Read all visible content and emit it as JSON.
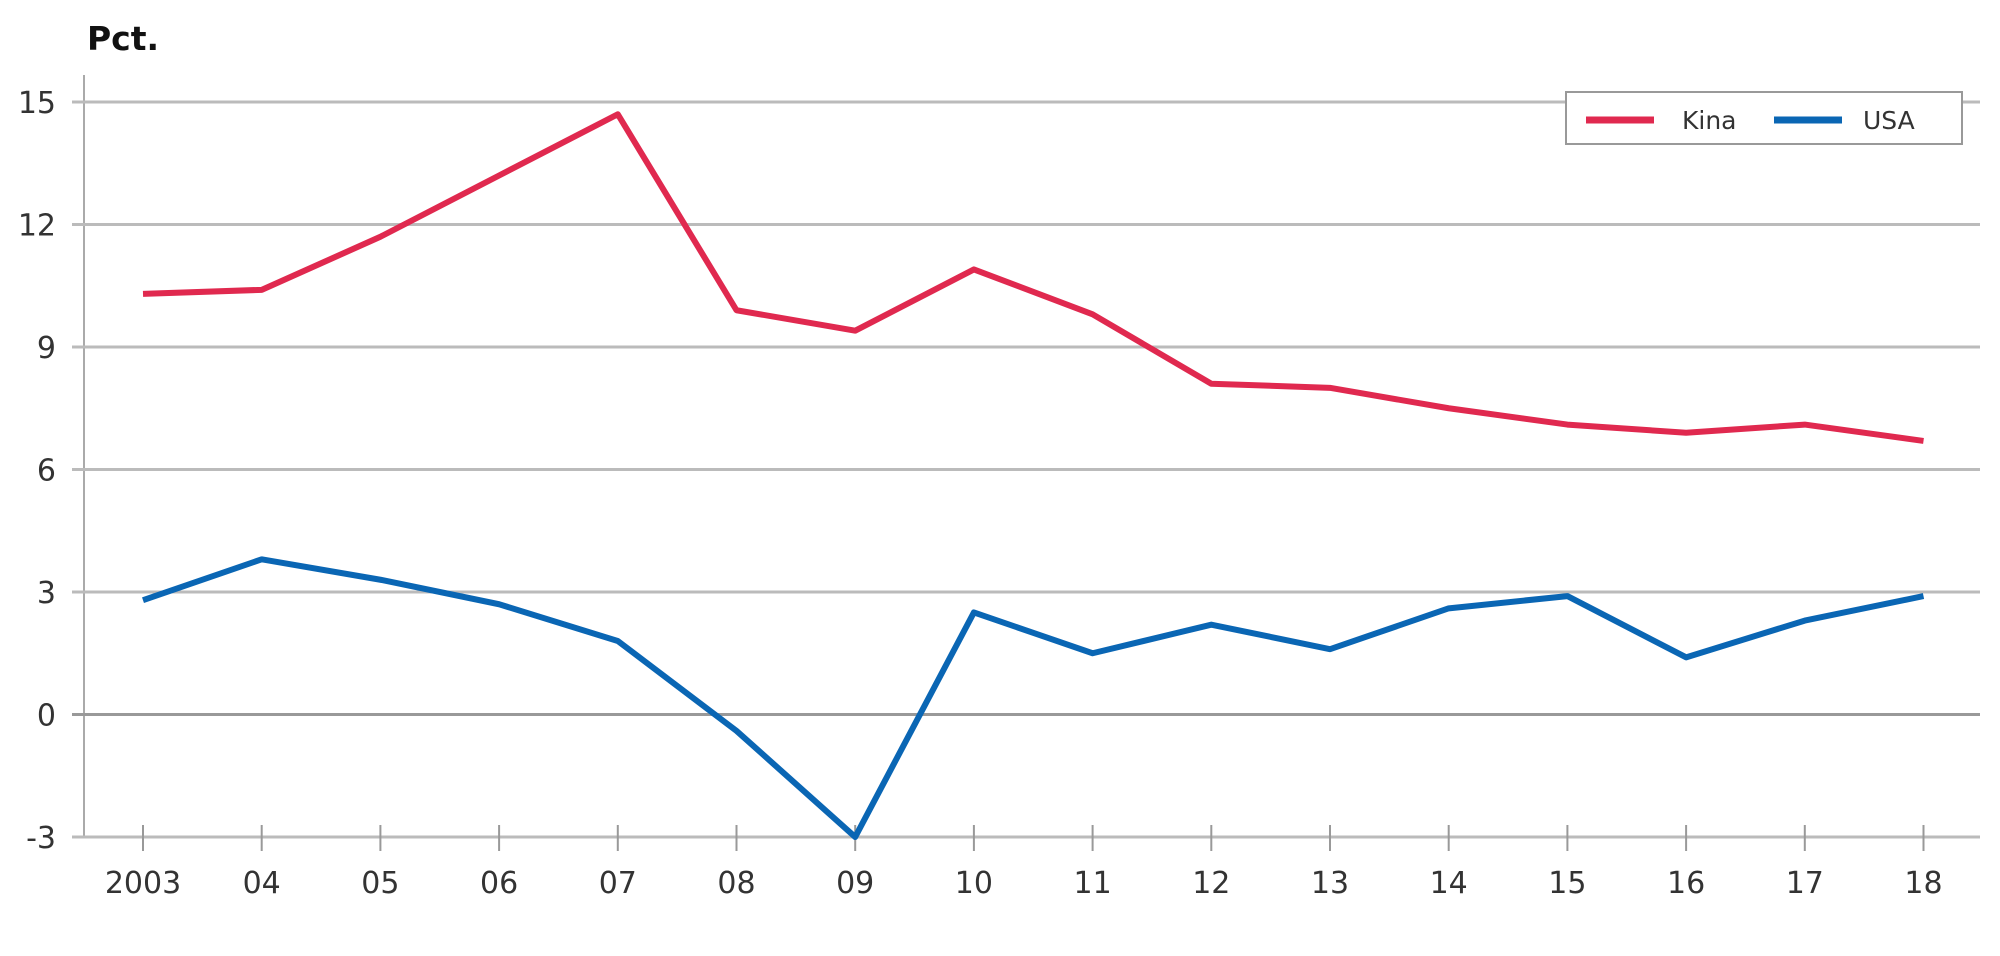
{
  "chart_data": {
    "type": "line",
    "title": "",
    "ylabel": "Pct.",
    "xlabel": "",
    "categories": [
      "2003",
      "04",
      "05",
      "06",
      "07",
      "08",
      "09",
      "10",
      "11",
      "12",
      "13",
      "14",
      "15",
      "16",
      "17",
      "18"
    ],
    "ylim": [
      -3,
      15
    ],
    "yticks": [
      -3,
      0,
      3,
      6,
      9,
      12,
      15
    ],
    "grid": true,
    "legend_position": "top-right",
    "series": [
      {
        "name": "Kina",
        "color": "#e0294f",
        "values": [
          10.3,
          10.4,
          11.7,
          13.2,
          14.7,
          9.9,
          9.4,
          10.9,
          9.8,
          8.1,
          8.0,
          7.5,
          7.1,
          6.9,
          7.1,
          6.7
        ]
      },
      {
        "name": "USA",
        "color": "#0a66b4",
        "values": [
          2.8,
          3.8,
          3.3,
          2.7,
          1.8,
          -0.4,
          -3.0,
          2.5,
          1.5,
          2.2,
          1.6,
          2.6,
          2.9,
          1.4,
          2.3,
          2.9
        ]
      }
    ]
  }
}
